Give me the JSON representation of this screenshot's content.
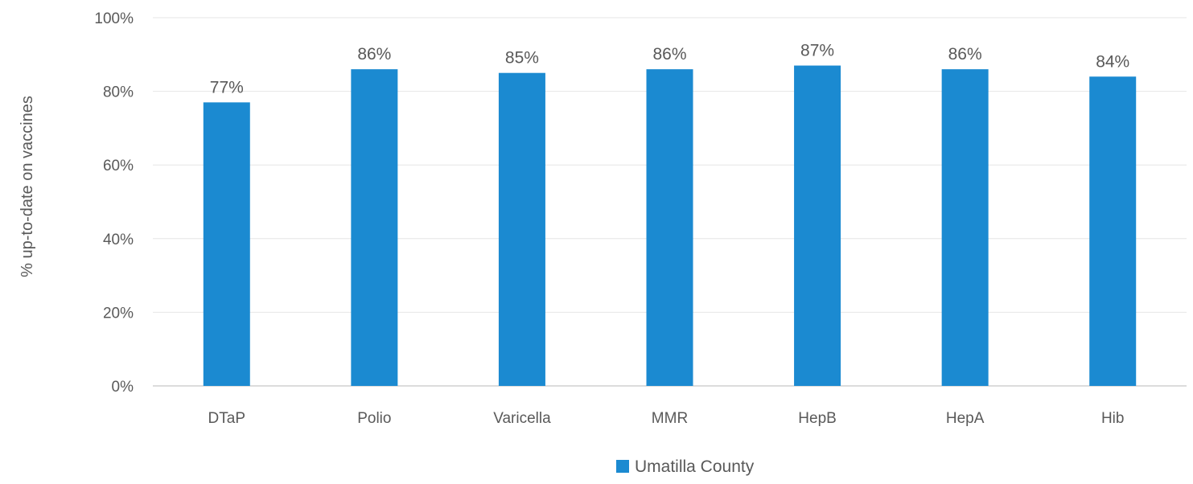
{
  "chart_data": {
    "type": "bar",
    "categories": [
      "DTaP",
      "Polio",
      "Varicella",
      "MMR",
      "HepB",
      "HepA",
      "Hib"
    ],
    "series": [
      {
        "name": "Umatilla County",
        "values": [
          77,
          86,
          85,
          86,
          87,
          86,
          84
        ],
        "labels": [
          "77%",
          "86%",
          "85%",
          "86%",
          "87%",
          "86%",
          "84%"
        ],
        "color": "#1b8ad1"
      }
    ],
    "title": "",
    "xlabel": "",
    "ylabel": "% up-to-date on vaccines",
    "ylim": [
      0,
      100
    ],
    "yticks": [
      0,
      20,
      40,
      60,
      80,
      100
    ],
    "ytick_labels": [
      "0%",
      "20%",
      "40%",
      "60%",
      "80%",
      "100%"
    ],
    "grid": true,
    "gridline_color": "#e6e6e6",
    "legend_position": "bottom"
  }
}
